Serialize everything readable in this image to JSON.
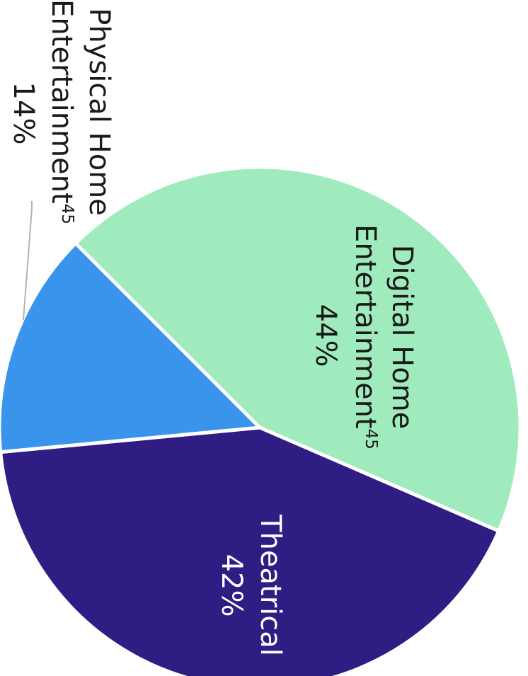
{
  "chart_data": {
    "type": "pie",
    "slices": [
      {
        "label": "Digital Home",
        "label_line2": "Entertainment",
        "footnote": "45",
        "value_label": "44%",
        "value": 44,
        "color": "#a0ebbd"
      },
      {
        "label": "Theatrical",
        "label_line2": "",
        "footnote": "",
        "value_label": "42%",
        "value": 42,
        "color": "#2f1d84"
      },
      {
        "label": "Physical Home",
        "label_line2": "Entertainment",
        "footnote": "45",
        "value_label": "14%",
        "value": 14,
        "color": "#3b94ec"
      }
    ],
    "label_colors": {
      "dark": "#1a1a1a",
      "light": "#ffffff"
    },
    "separator_color": "#ffffff",
    "leader_line_color": "#b3b3b3"
  }
}
